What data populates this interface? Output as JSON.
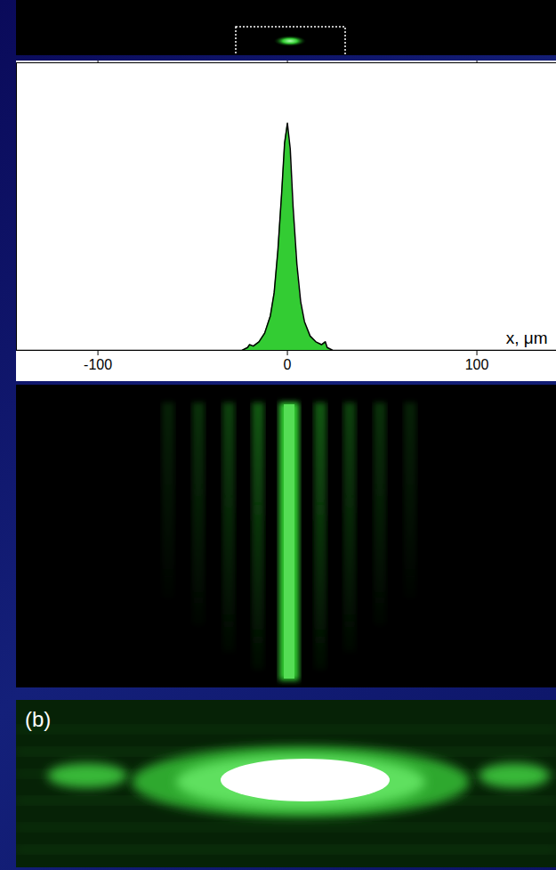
{
  "chart_data": {
    "type": "area",
    "xlabel": "x, μm",
    "x": [
      -143,
      -30,
      -24,
      -21,
      -20,
      -18,
      -15,
      -12,
      -9,
      -7,
      -5,
      -3,
      -1.5,
      0,
      1.5,
      3,
      5,
      7,
      9,
      12,
      15,
      18,
      20,
      21,
      24,
      142
    ],
    "values": [
      0,
      0,
      0,
      0.01,
      0.02,
      0.015,
      0.03,
      0.06,
      0.12,
      0.2,
      0.35,
      0.55,
      0.72,
      0.79,
      0.7,
      0.5,
      0.3,
      0.17,
      0.1,
      0.05,
      0.03,
      0.02,
      0.03,
      0.01,
      0,
      0
    ],
    "color": "#33cc33",
    "xlim": [
      -143,
      142
    ],
    "xticks": [
      -100,
      0,
      100
    ],
    "ylim": [
      0,
      1
    ],
    "tick_labels": "x",
    "grid": false
  },
  "photo_label": "(b)"
}
